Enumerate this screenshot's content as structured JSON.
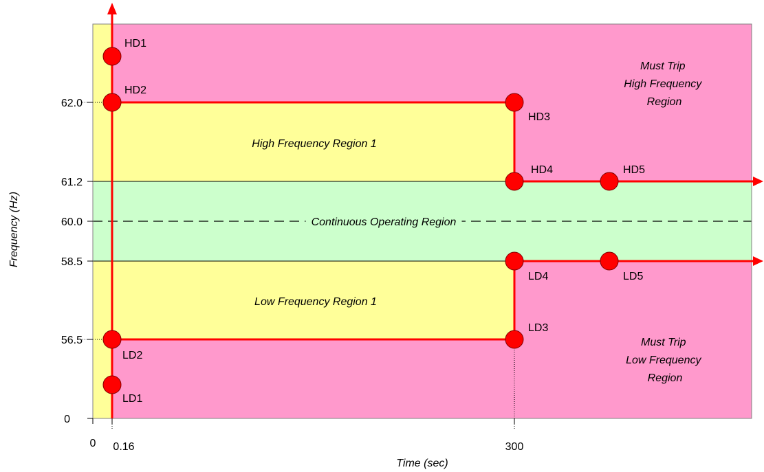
{
  "chart_data": {
    "type": "region-diagram",
    "xlabel": "Time (sec)",
    "ylabel": "Frequency (Hz)",
    "x_ticks": [
      "0",
      "0.16",
      "300"
    ],
    "y_ticks": [
      "0",
      "56.5",
      "58.5",
      "60.0",
      "61.2",
      "62.0"
    ],
    "regions": [
      {
        "id": "must-trip-high",
        "label": [
          "Must Trip",
          "High Frequency",
          "Region"
        ]
      },
      {
        "id": "high-region-1",
        "label": [
          "High Frequency Region 1"
        ]
      },
      {
        "id": "continuous",
        "label": [
          "Continuous Operating Region"
        ]
      },
      {
        "id": "low-region-1",
        "label": [
          "Low Frequency Region 1"
        ]
      },
      {
        "id": "must-trip-low",
        "label": [
          "Must Trip",
          "Low Frequency",
          "Region"
        ]
      }
    ],
    "points": [
      {
        "name": "HD1",
        "time": "0.16",
        "frequency": "above 62.0"
      },
      {
        "name": "HD2",
        "time": 0.16,
        "frequency": 62.0
      },
      {
        "name": "HD3",
        "time": 300,
        "frequency": 62.0
      },
      {
        "name": "HD4",
        "time": 300,
        "frequency": 61.2
      },
      {
        "name": "HD5",
        "time": "after 300",
        "frequency": 61.2
      },
      {
        "name": "LD1",
        "time": "0.16",
        "frequency": "below 56.5"
      },
      {
        "name": "LD2",
        "time": 0.16,
        "frequency": 56.5
      },
      {
        "name": "LD3",
        "time": 300,
        "frequency": 56.5
      },
      {
        "name": "LD4",
        "time": 300,
        "frequency": 58.5
      },
      {
        "name": "LD5",
        "time": "after 300",
        "frequency": 58.5
      }
    ],
    "colors": {
      "must_trip": "#ff99cc",
      "ride_through": "#ffff99",
      "continuous": "#ccffcc",
      "boundary": "#ff0000",
      "point_fill": "#ff0000"
    },
    "grid": false,
    "legend": "none"
  }
}
